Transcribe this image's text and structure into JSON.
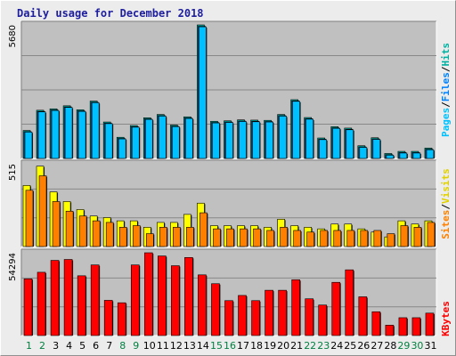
{
  "title": "Daily usage for December 2018",
  "colors": {
    "background": "#ececec",
    "plot_background": "#c0c0c0",
    "grid": "#888888",
    "hits": "#00b0a0",
    "files": "#0080ff",
    "pages": "#00c0ff",
    "visits": "#ffff00",
    "sites": "#ff8000",
    "kbytes": "#ff0000",
    "weekday_label": "#000000",
    "weekend_label": "#008040",
    "title_text": "#1d1d9e"
  },
  "legends": {
    "panel1": {
      "hits": "Hits",
      "files": "Files",
      "pages": "Pages",
      "sep": "/"
    },
    "panel2": {
      "visits": "Visits",
      "sites": "Sites",
      "sep": "/"
    },
    "panel3": {
      "kbytes": "KBytes"
    }
  },
  "chart_data": [
    {
      "type": "bar",
      "title": "Daily usage for December 2018",
      "x": [
        1,
        2,
        3,
        4,
        5,
        6,
        7,
        8,
        9,
        10,
        11,
        12,
        13,
        14,
        15,
        16,
        17,
        18,
        19,
        20,
        21,
        22,
        23,
        24,
        25,
        26,
        27,
        28,
        29,
        30,
        31
      ],
      "ymax_label": "5680",
      "ylim": [
        0,
        5680
      ],
      "grid": true,
      "series": [
        {
          "name": "Hits",
          "values": [
            1190,
            2050,
            2110,
            2240,
            2070,
            2440,
            1550,
            900,
            1400,
            1730,
            1870,
            1420,
            1770,
            5680,
            1580,
            1600,
            1640,
            1630,
            1620,
            1870,
            2500,
            1740,
            870,
            1350,
            1290,
            540,
            880,
            210,
            300,
            300,
            440
          ]
        },
        {
          "name": "Files",
          "values": [
            1140,
            2000,
            2060,
            2190,
            2020,
            2390,
            1500,
            850,
            1350,
            1680,
            1820,
            1370,
            1720,
            5620,
            1530,
            1550,
            1590,
            1580,
            1570,
            1820,
            2450,
            1690,
            820,
            1300,
            1240,
            490,
            830,
            160,
            250,
            250,
            390
          ]
        },
        {
          "name": "Pages",
          "values": [
            1120,
            1980,
            2040,
            2170,
            2000,
            2370,
            1480,
            830,
            1330,
            1660,
            1800,
            1350,
            1700,
            5600,
            1510,
            1530,
            1570,
            1560,
            1550,
            1800,
            2430,
            1670,
            800,
            1280,
            1220,
            470,
            810,
            140,
            230,
            230,
            370
          ]
        }
      ]
    },
    {
      "type": "bar",
      "x": [
        1,
        2,
        3,
        4,
        5,
        6,
        7,
        8,
        9,
        10,
        11,
        12,
        13,
        14,
        15,
        16,
        17,
        18,
        19,
        20,
        21,
        22,
        23,
        24,
        25,
        26,
        27,
        28,
        29,
        30,
        31
      ],
      "ymax_label": "515",
      "ylim": [
        0,
        515
      ],
      "grid": true,
      "series": [
        {
          "name": "Visits",
          "values": [
            380,
            500,
            340,
            280,
            230,
            190,
            180,
            160,
            160,
            120,
            150,
            150,
            200,
            270,
            130,
            130,
            130,
            130,
            120,
            170,
            130,
            120,
            110,
            140,
            140,
            110,
            90,
            60,
            160,
            140,
            160
          ]
        },
        {
          "name": "Sites",
          "values": [
            350,
            440,
            280,
            220,
            190,
            160,
            150,
            120,
            130,
            80,
            120,
            120,
            120,
            210,
            110,
            110,
            110,
            110,
            100,
            120,
            100,
            90,
            100,
            100,
            100,
            100,
            100,
            80,
            130,
            120,
            150
          ]
        }
      ]
    },
    {
      "type": "bar",
      "x": [
        1,
        2,
        3,
        4,
        5,
        6,
        7,
        8,
        9,
        10,
        11,
        12,
        13,
        14,
        15,
        16,
        17,
        18,
        19,
        20,
        21,
        22,
        23,
        24,
        25,
        26,
        27,
        28,
        29,
        30,
        31
      ],
      "ymax_label": "54294",
      "ylim": [
        0,
        54294
      ],
      "grid": true,
      "series": [
        {
          "name": "KBytes",
          "values": [
            37200,
            41500,
            49300,
            49900,
            39200,
            46300,
            23100,
            21500,
            46300,
            54294,
            52200,
            45800,
            51200,
            39800,
            34000,
            22900,
            26300,
            22900,
            29700,
            29700,
            36600,
            24100,
            20000,
            34900,
            43100,
            25400,
            15600,
            6800,
            11700,
            11700,
            14700
          ]
        }
      ]
    }
  ],
  "day_labels": [
    "1",
    "2",
    "3",
    "4",
    "5",
    "6",
    "7",
    "8",
    "9",
    "10",
    "11",
    "12",
    "13",
    "14",
    "15",
    "16",
    "17",
    "18",
    "19",
    "20",
    "21",
    "22",
    "23",
    "24",
    "25",
    "26",
    "27",
    "28",
    "29",
    "30",
    "31"
  ],
  "weekend_days": [
    1,
    2,
    8,
    9,
    15,
    16,
    22,
    23,
    29,
    30
  ]
}
